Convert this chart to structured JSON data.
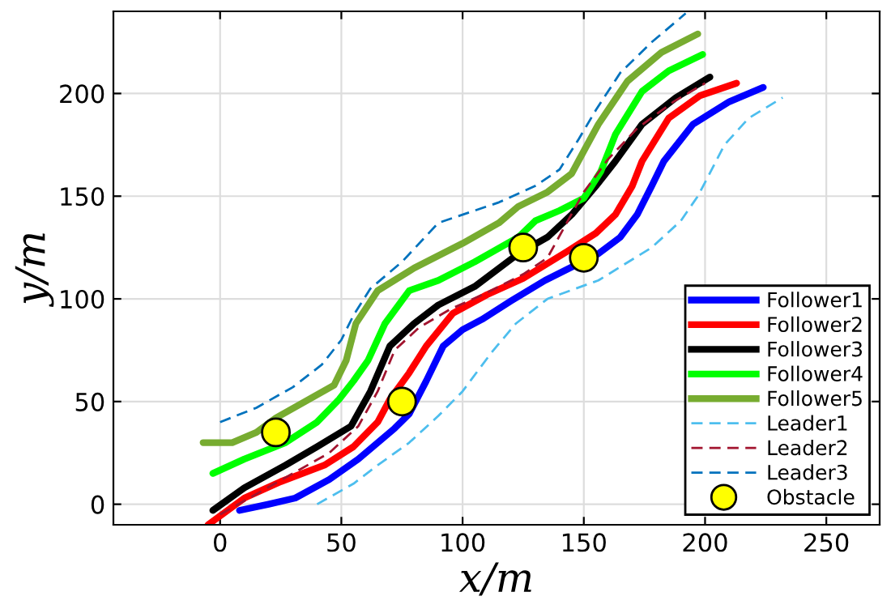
{
  "chart_data": {
    "type": "line",
    "xlabel": "x/m",
    "ylabel": "y/m",
    "xlim": [
      -44,
      272
    ],
    "ylim": [
      -10,
      240
    ],
    "xticks": [
      0,
      50,
      100,
      150,
      200,
      250
    ],
    "yticks": [
      0,
      50,
      100,
      150,
      200
    ],
    "grid": true,
    "legend": "lower right",
    "series": [
      {
        "name": "Follower1",
        "color": "#0000ff",
        "line_style": "solid",
        "x": [
          8,
          20,
          31,
          45,
          57,
          65,
          72,
          78,
          85,
          92,
          100,
          108,
          120,
          134,
          156,
          165,
          172,
          178,
          183,
          195,
          210,
          224
        ],
        "values": [
          -3,
          0,
          3,
          12,
          22,
          30,
          37,
          44,
          60,
          77,
          85,
          90,
          99,
          109,
          122,
          130,
          141,
          155,
          167,
          185,
          196,
          203
        ]
      },
      {
        "name": "Follower2",
        "color": "#ff0000",
        "line_style": "solid",
        "x": [
          -5,
          10,
          25,
          43,
          55,
          65,
          70,
          78,
          85,
          96,
          110,
          125,
          143,
          155,
          163,
          170,
          174,
          185,
          198,
          213
        ],
        "values": [
          -10,
          3,
          11,
          19,
          28,
          40,
          51,
          64,
          77,
          93,
          102,
          110,
          123,
          132,
          141,
          155,
          167,
          188,
          199,
          205
        ]
      },
      {
        "name": "Follower3",
        "color": "#000000",
        "line_style": "solid",
        "x": [
          -3,
          10,
          27,
          40,
          54,
          62,
          70,
          80,
          90,
          105,
          123,
          135,
          145,
          155,
          163,
          174,
          188,
          202
        ],
        "values": [
          -3,
          8,
          19,
          28,
          38,
          55,
          77,
          88,
          97,
          106,
          122,
          130,
          141,
          155,
          167,
          185,
          198,
          208
        ]
      },
      {
        "name": "Follower4",
        "color": "#00ff00",
        "line_style": "solid",
        "x": [
          -3,
          10,
          27,
          40,
          49,
          55,
          61,
          68,
          78,
          90,
          105,
          123,
          130,
          140,
          150,
          157,
          163,
          174,
          185,
          199
        ],
        "values": [
          15,
          22,
          30,
          40,
          51,
          60,
          70,
          88,
          104,
          109,
          118,
          130,
          138,
          143,
          149,
          162,
          180,
          201,
          211,
          219
        ]
      },
      {
        "name": "Follower5",
        "color": "#77ac30",
        "line_style": "solid",
        "x": [
          -7,
          5,
          15,
          23,
          35,
          47,
          52,
          56,
          65,
          80,
          100,
          115,
          123,
          135,
          145,
          150,
          156,
          168,
          182,
          197
        ],
        "values": [
          30,
          30,
          35,
          42,
          50,
          58,
          70,
          88,
          104,
          115,
          127,
          137,
          145,
          152,
          161,
          172,
          185,
          206,
          220,
          229
        ]
      },
      {
        "name": "Leader1",
        "color": "#4dbeee",
        "line_style": "dashed",
        "x": [
          40,
          55,
          65,
          78,
          90,
          100,
          112,
          122,
          135,
          156,
          178,
          190,
          197,
          201,
          208,
          218,
          232
        ],
        "values": [
          0,
          10,
          19,
          30,
          43,
          55,
          74,
          88,
          100,
          109,
          125,
          138,
          150,
          159,
          175,
          188,
          198
        ]
      },
      {
        "name": "Leader2",
        "color": "#a2142f",
        "line_style": "dashed",
        "x": [
          0,
          15,
          30,
          45,
          57,
          65,
          72,
          82,
          95,
          110,
          125,
          135,
          142,
          150,
          160,
          172,
          187,
          200
        ],
        "values": [
          -5,
          5,
          15,
          25,
          38,
          55,
          75,
          86,
          95,
          103,
          112,
          120,
          135,
          152,
          168,
          183,
          196,
          205
        ]
      },
      {
        "name": "Leader3",
        "color": "#0072bd",
        "line_style": "dashed",
        "x": [
          0,
          15,
          30,
          42,
          50,
          55,
          62,
          75,
          90,
          115,
          130,
          140,
          148,
          155,
          165,
          178,
          192
        ],
        "values": [
          40,
          47,
          57,
          68,
          80,
          92,
          105,
          118,
          137,
          147,
          155,
          163,
          178,
          192,
          210,
          225,
          239
        ]
      },
      {
        "name": "Obstacle",
        "type": "scatter",
        "marker": "circle",
        "color": "#ffff00",
        "x": [
          23,
          75,
          125,
          150
        ],
        "values": [
          35,
          50,
          125,
          120
        ]
      }
    ]
  }
}
